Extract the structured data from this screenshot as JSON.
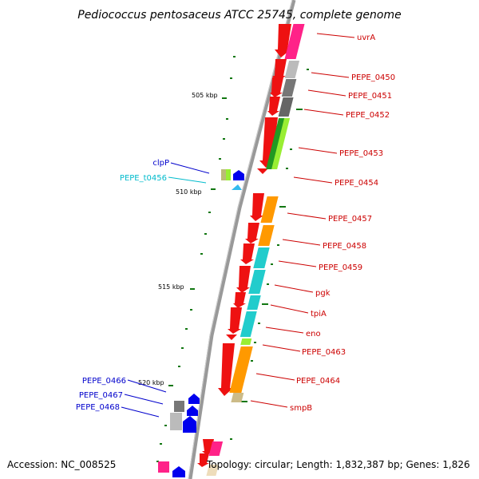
{
  "title": "Pediococcus pentosaceus ATCC 25745, complete genome",
  "accession": "Accession: NC_008525",
  "topology": "Topology: circular; Length: 1,832,387 bp; Genes: 1,826",
  "ruler": [
    "505 kbp",
    "510 kbp",
    "515 kbp",
    "520 kbp"
  ],
  "genes_right": [
    "uvrA",
    "PEPE_0450",
    "PEPE_0451",
    "PEPE_0452",
    "PEPE_0453",
    "PEPE_0454",
    "PEPE_0457",
    "PEPE_0458",
    "PEPE_0459",
    "pgk",
    "tpiA",
    "eno",
    "PEPE_0463",
    "PEPE_0464",
    "smpB"
  ],
  "genes_left": [
    "clpP",
    "PEPE_t0456",
    "PEPE_0466",
    "PEPE_0467",
    "PEPE_0468"
  ],
  "colors": {
    "forward_red": "#ee1111",
    "label_red": "#cc0000",
    "label_blue": "#0000cc",
    "label_cyan": "#00bbcc",
    "tick_green": "#117711",
    "backbone": "#888888"
  }
}
